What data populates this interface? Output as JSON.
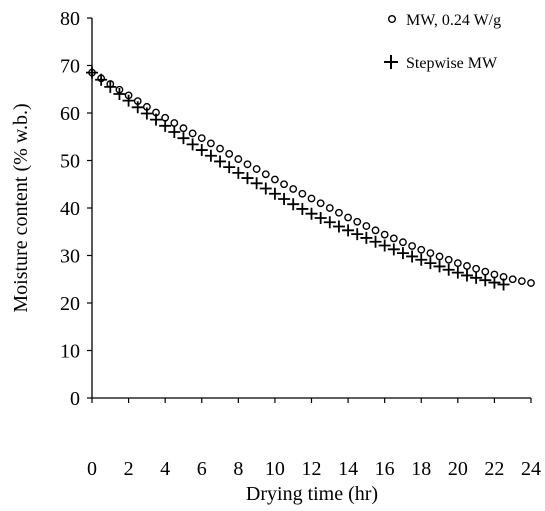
{
  "chart_data": {
    "type": "scatter",
    "title": "",
    "xlabel": "Drying time (hr)",
    "ylabel": "Moisture content (% w.b.)",
    "xlim": [
      0,
      24
    ],
    "ylim": [
      0,
      80
    ],
    "x_ticks": [
      "0",
      "2",
      "4",
      "6",
      "8",
      "10",
      "12",
      "14",
      "16",
      "18",
      "20",
      "22",
      "24"
    ],
    "y_ticks": [
      "0",
      "10",
      "20",
      "30",
      "40",
      "50",
      "60",
      "70",
      "80"
    ],
    "grid": false,
    "legend": "top-right",
    "series": [
      {
        "name": "MW, 0.24 W/g",
        "marker": "circle",
        "color": "#000000",
        "x": [
          0,
          0.5,
          1,
          1.5,
          2,
          2.5,
          3,
          3.5,
          4,
          4.5,
          5,
          5.5,
          6,
          6.5,
          7,
          7.5,
          8,
          8.5,
          9,
          9.5,
          10,
          10.5,
          11,
          11.5,
          12,
          12.5,
          13,
          13.5,
          14,
          14.5,
          15,
          15.5,
          16,
          16.5,
          17,
          17.5,
          18,
          18.5,
          19,
          19.5,
          20,
          20.5,
          21,
          21.5,
          22,
          22.5,
          23,
          23.5,
          24
        ],
        "y": [
          68.5,
          67.3,
          66.1,
          64.9,
          63.7,
          62.5,
          61.3,
          60.1,
          59.0,
          57.9,
          56.8,
          55.7,
          54.7,
          53.6,
          52.5,
          51.4,
          50.3,
          49.2,
          48.2,
          47.1,
          46.0,
          45.0,
          44.0,
          43.0,
          42.0,
          41.0,
          40.0,
          39.0,
          38.0,
          37.1,
          36.2,
          35.3,
          34.4,
          33.6,
          32.8,
          32.0,
          31.2,
          30.5,
          29.8,
          29.1,
          28.4,
          27.8,
          27.2,
          26.6,
          26.0,
          25.5,
          25.0,
          24.6,
          24.2
        ]
      },
      {
        "name": "Stepwise MW",
        "marker": "plus",
        "color": "#000000",
        "x": [
          0,
          0.5,
          1,
          1.5,
          2,
          2.5,
          3,
          3.5,
          4,
          4.5,
          5,
          5.5,
          6,
          6.5,
          7,
          7.5,
          8,
          8.5,
          9,
          9.5,
          10,
          10.5,
          11,
          11.5,
          12,
          12.5,
          13,
          13.5,
          14,
          14.5,
          15,
          15.5,
          16,
          16.5,
          17,
          17.5,
          18,
          18.5,
          19,
          19.5,
          20,
          20.5,
          21,
          21.5,
          22,
          22.5
        ],
        "y": [
          68.5,
          67.0,
          65.5,
          64.0,
          62.6,
          61.2,
          59.9,
          58.6,
          57.3,
          56.0,
          54.7,
          53.4,
          52.2,
          51.0,
          49.8,
          48.6,
          47.4,
          46.3,
          45.2,
          44.1,
          43.0,
          41.9,
          40.8,
          39.8,
          38.8,
          37.9,
          37.0,
          36.1,
          35.3,
          34.5,
          33.7,
          32.9,
          32.1,
          31.3,
          30.5,
          29.8,
          29.1,
          28.4,
          27.7,
          27.0,
          26.4,
          25.8,
          25.3,
          24.8,
          24.3,
          23.9
        ]
      }
    ]
  }
}
